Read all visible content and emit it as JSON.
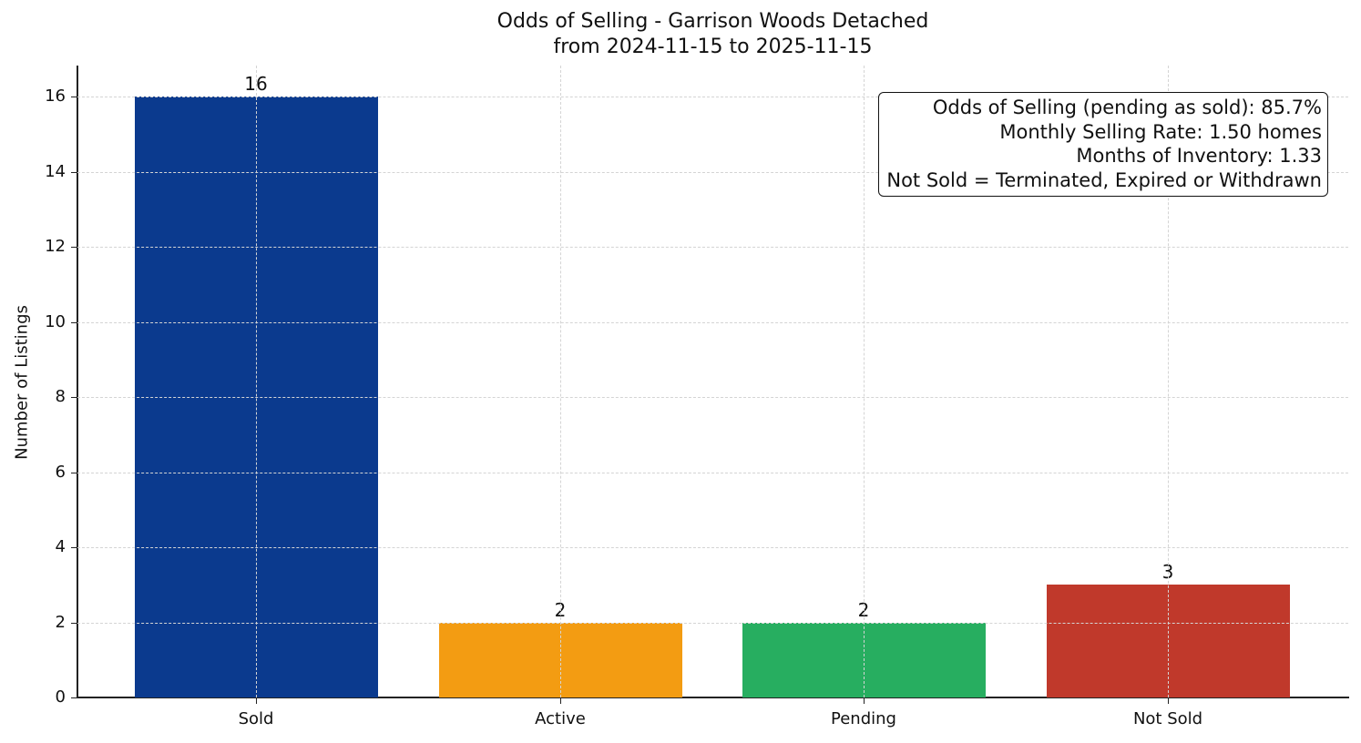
{
  "chart_data": {
    "type": "bar",
    "title": "Odds of Selling - Garrison Woods Detached",
    "subtitle": "from 2024-11-15 to 2025-11-15",
    "xlabel": "",
    "ylabel": "Number of Listings",
    "categories": [
      "Sold",
      "Active",
      "Pending",
      "Not Sold"
    ],
    "values": [
      16,
      2,
      2,
      3
    ],
    "colors": [
      "#0B3A8E",
      "#F39C12",
      "#27AE60",
      "#C0392B"
    ],
    "ylim": [
      0,
      16.8
    ],
    "yticks": [
      0,
      2,
      4,
      6,
      8,
      10,
      12,
      14,
      16
    ],
    "grid": true,
    "data_labels": [
      "16",
      "2",
      "2",
      "3"
    ],
    "annotation": [
      "Odds of Selling (pending as sold): 85.7%",
      "Monthly Selling Rate: 1.50 homes",
      "Months of Inventory: 1.33",
      "Not Sold = Terminated, Expired or Withdrawn"
    ]
  }
}
